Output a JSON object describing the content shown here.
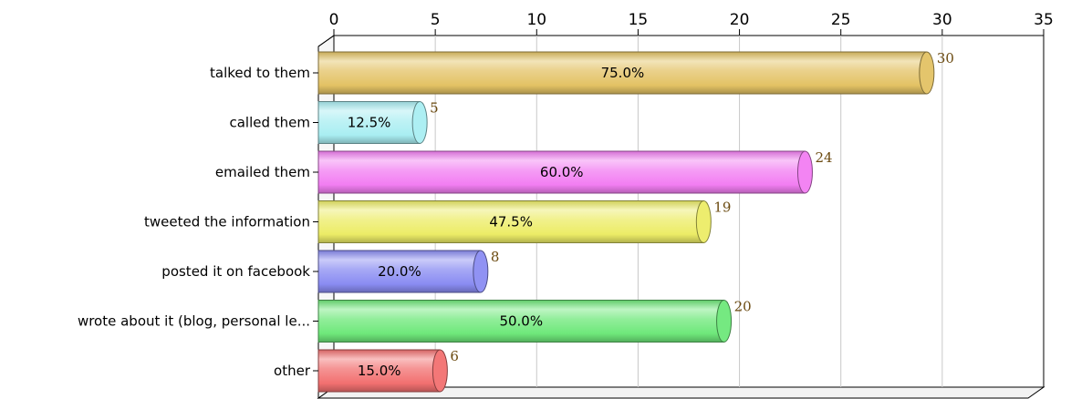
{
  "chart_data": {
    "type": "bar",
    "orientation": "horizontal",
    "title": "",
    "xlabel": "",
    "ylabel": "",
    "xlim": [
      0,
      35
    ],
    "x_ticks": [
      "0",
      "5",
      "10",
      "15",
      "20",
      "25",
      "30",
      "35"
    ],
    "grid": true,
    "categories": [
      "talked to them",
      "called them",
      "emailed them",
      "tweeted the information",
      "posted it on facebook",
      "wrote about it (blog, personal le...",
      "other"
    ],
    "values": [
      30,
      5,
      24,
      19,
      8,
      20,
      6
    ],
    "value_labels": [
      "30",
      "5",
      "24",
      "19",
      "8",
      "20",
      "6"
    ],
    "percent_labels": [
      "75.0%",
      "12.5%",
      "60.0%",
      "47.5%",
      "20.0%",
      "50.0%",
      "15.0%"
    ],
    "colors": [
      "#e3c264",
      "#a9eef2",
      "#f27ef2",
      "#ecec66",
      "#8a8cf2",
      "#6ee87a",
      "#f27070"
    ]
  }
}
